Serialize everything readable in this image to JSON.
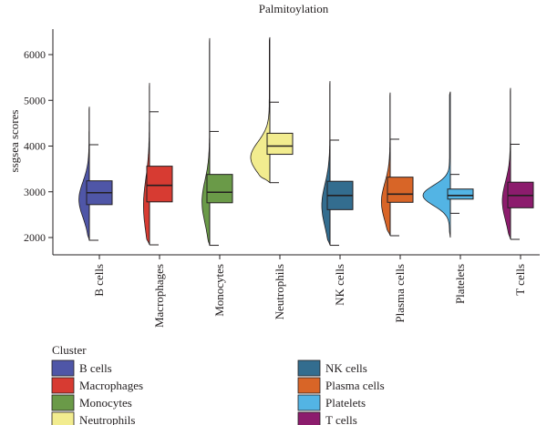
{
  "chart_data": {
    "type": "violin-box",
    "title": "Palmitoylation",
    "ylabel": "ssgsea scores",
    "xlabel": "",
    "ylim": [
      1800,
      6500
    ],
    "yticks": [
      2000,
      3000,
      4000,
      5000,
      6000
    ],
    "categories": [
      "B cells",
      "Macrophages",
      "Monocytes",
      "Neutrophils",
      "NK cells",
      "Plasma cells",
      "Platelets",
      "T cells"
    ],
    "colors": [
      "#4f56a7",
      "#d73b32",
      "#6a9a48",
      "#f2ec8f",
      "#336d8f",
      "#d86527",
      "#53b4e4",
      "#8c1c6d"
    ],
    "series": [
      {
        "name": "B cells",
        "q1": 2720,
        "median": 2980,
        "q3": 3240,
        "whisker_low": 1940,
        "whisker_high": 4030,
        "min": 1930,
        "max": 4860,
        "mode": 2830,
        "width": 0.38
      },
      {
        "name": "Macrophages",
        "q1": 2780,
        "median": 3140,
        "q3": 3560,
        "whisker_low": 1840,
        "whisker_high": 4750,
        "min": 1840,
        "max": 5380,
        "mode": 2700,
        "width": 0.22
      },
      {
        "name": "Monocytes",
        "q1": 2760,
        "median": 2990,
        "q3": 3380,
        "whisker_low": 1830,
        "whisker_high": 4320,
        "min": 1820,
        "max": 6360,
        "mode": 2780,
        "width": 0.28
      },
      {
        "name": "Neutrophils",
        "q1": 3820,
        "median": 4000,
        "q3": 4280,
        "whisker_low": 3200,
        "whisker_high": 4960,
        "min": 3200,
        "max": 6380,
        "mode": 3750,
        "width": 0.7
      },
      {
        "name": "NK cells",
        "q1": 2610,
        "median": 2920,
        "q3": 3230,
        "whisker_low": 1830,
        "whisker_high": 4130,
        "min": 1830,
        "max": 5420,
        "mode": 2700,
        "width": 0.3
      },
      {
        "name": "Plasma cells",
        "q1": 2770,
        "median": 2950,
        "q3": 3320,
        "whisker_low": 2040,
        "whisker_high": 4150,
        "min": 2040,
        "max": 5170,
        "mode": 2780,
        "width": 0.32
      },
      {
        "name": "Platelets",
        "q1": 2840,
        "median": 2920,
        "q3": 3060,
        "whisker_low": 2530,
        "whisker_high": 3380,
        "min": 2000,
        "max": 5190,
        "mode": 2920,
        "width": 1.0
      },
      {
        "name": "T cells",
        "q1": 2650,
        "median": 2920,
        "q3": 3210,
        "whisker_low": 1960,
        "whisker_high": 4040,
        "min": 1960,
        "max": 5270,
        "mode": 2800,
        "width": 0.3
      }
    ],
    "legend": {
      "title": "Cluster",
      "placement": "bottom",
      "entries": [
        "B cells",
        "Macrophages",
        "Monocytes",
        "Neutrophils",
        "NK cells",
        "Plasma cells",
        "Platelets",
        "T cells"
      ]
    },
    "grid": false
  }
}
